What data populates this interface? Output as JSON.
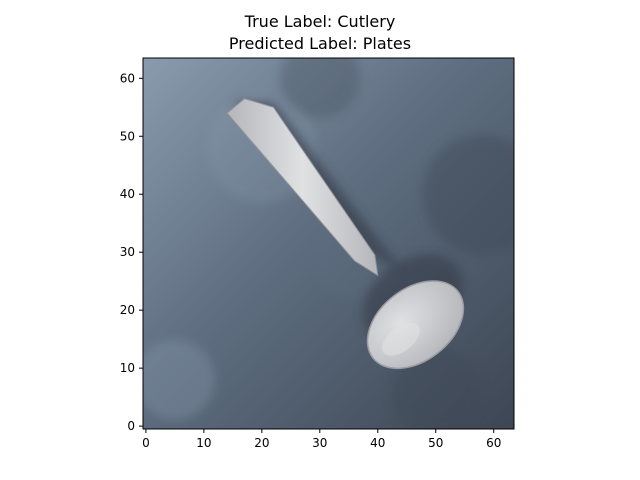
{
  "title": {
    "true_label": "True Label: Cutlery",
    "predicted_label": "Predicted Label: Plates"
  },
  "image": {
    "subject": "spoon",
    "pixel_grid": [
      64,
      64
    ],
    "colors": {
      "background": "#5e6e80",
      "background_light": "#8a9bae",
      "background_dark": "#3d4654",
      "spoon": "#b4b6ba",
      "spoon_highlight": "#e0e1e3",
      "spoon_shadow": "#2e333c"
    }
  },
  "axes": {
    "xlim": [
      -0.5,
      63.5
    ],
    "ylim": [
      63.5,
      -0.5
    ],
    "x_ticks": [
      0,
      10,
      20,
      30,
      40,
      50,
      60
    ],
    "y_ticks": [
      0,
      10,
      20,
      30,
      40,
      50,
      60
    ]
  }
}
